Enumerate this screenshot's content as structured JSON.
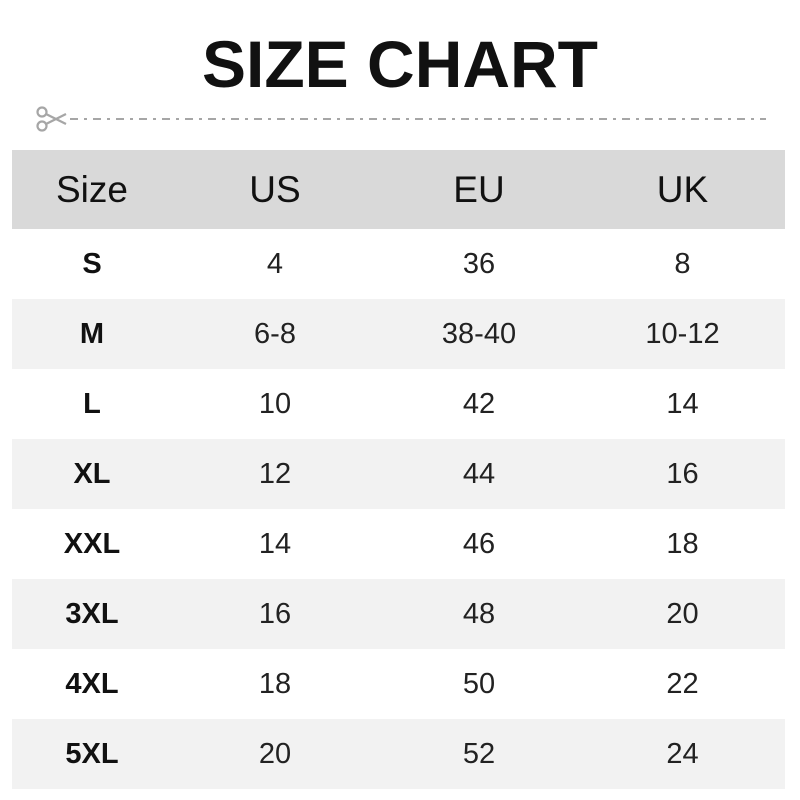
{
  "title": "SIZE CHART",
  "cut_line": {
    "icon": "scissors-icon",
    "color": "#a6a6a6"
  },
  "colors": {
    "header_bg": "#d9d9d9",
    "alt_row_bg": "#f2f2f2"
  },
  "chart_data": {
    "type": "table",
    "columns": [
      "Size",
      "US",
      "EU",
      "UK"
    ],
    "rows": [
      [
        "S",
        "4",
        "36",
        "8"
      ],
      [
        "M",
        "6-8",
        "38-40",
        "10-12"
      ],
      [
        "L",
        "10",
        "42",
        "14"
      ],
      [
        "XL",
        "12",
        "44",
        "16"
      ],
      [
        "XXL",
        "14",
        "46",
        "18"
      ],
      [
        "3XL",
        "16",
        "48",
        "20"
      ],
      [
        "4XL",
        "18",
        "50",
        "22"
      ],
      [
        "5XL",
        "20",
        "52",
        "24"
      ]
    ]
  }
}
